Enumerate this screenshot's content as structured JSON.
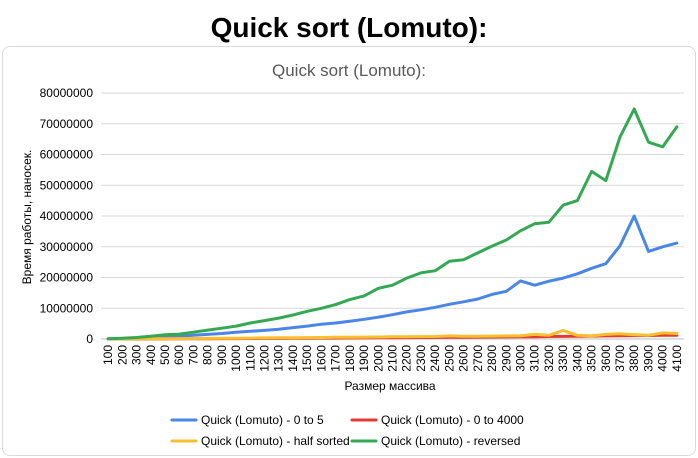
{
  "page": {
    "title": "Quick sort (Lomuto):"
  },
  "chart_data": {
    "type": "line",
    "title": "Quick sort (Lomuto):",
    "xlabel": "Размер массива",
    "ylabel": "Время работы, наносек.",
    "ylim": [
      0,
      80000000
    ],
    "yticks": [
      "0",
      "10000000",
      "20000000",
      "30000000",
      "40000000",
      "50000000",
      "60000000",
      "70000000",
      "80000000"
    ],
    "grid": true,
    "legend_position": "bottom",
    "categories": [
      100,
      200,
      300,
      400,
      500,
      600,
      700,
      800,
      900,
      1000,
      1100,
      1200,
      1300,
      1400,
      1500,
      1600,
      1700,
      1800,
      1900,
      2000,
      2100,
      2200,
      2300,
      2400,
      2500,
      2600,
      2700,
      2800,
      2900,
      3000,
      3100,
      3200,
      3300,
      3400,
      3500,
      3600,
      3700,
      3800,
      3900,
      4000,
      4100
    ],
    "series": [
      {
        "name": "Quick (Lomuto) - 0 to 5",
        "color": "#4a86e8",
        "values": [
          50000,
          100000,
          200000,
          400000,
          600000,
          900000,
          1200000,
          1500000,
          1800000,
          2200000,
          2500000,
          2800000,
          3200000,
          3700000,
          4200000,
          4800000,
          5200000,
          5800000,
          6400000,
          7100000,
          7900000,
          8800000,
          9500000,
          10300000,
          11300000,
          12100000,
          13000000,
          14500000,
          15500000,
          18900000,
          17500000,
          18800000,
          19800000,
          21200000,
          23000000,
          24500000,
          30300000,
          40000000,
          28500000,
          30000000,
          31200000
        ]
      },
      {
        "name": "Quick (Lomuto) - 0 to 4000",
        "color": "#e53935",
        "values": [
          0,
          0,
          10000,
          20000,
          40000,
          60000,
          80000,
          100000,
          120000,
          140000,
          160000,
          180000,
          200000,
          220000,
          250000,
          280000,
          300000,
          330000,
          360000,
          390000,
          420000,
          450000,
          480000,
          510000,
          550000,
          580000,
          610000,
          650000,
          690000,
          720000,
          760000,
          800000,
          850000,
          900000,
          950000,
          1000000,
          1050000,
          1100000,
          1150000,
          1200000,
          1250000
        ]
      },
      {
        "name": "Quick (Lomuto) - half sorted",
        "color": "#f9bf2c",
        "values": [
          20000,
          40000,
          60000,
          80000,
          100000,
          130000,
          160000,
          200000,
          230000,
          270000,
          300000,
          350000,
          380000,
          420000,
          460000,
          500000,
          540000,
          580000,
          620000,
          660000,
          700000,
          740000,
          780000,
          820000,
          1000000,
          870000,
          900000,
          950000,
          1000000,
          1050000,
          1500000,
          1200000,
          2800000,
          1200000,
          1000000,
          1500000,
          1700000,
          1400000,
          1200000,
          2000000,
          1800000
        ]
      },
      {
        "name": "Quick (Lomuto) - reversed",
        "color": "#34a853",
        "values": [
          100000,
          250000,
          500000,
          900000,
          1400000,
          1600000,
          2200000,
          2900000,
          3500000,
          4200000,
          5200000,
          6000000,
          6800000,
          7800000,
          9000000,
          10000000,
          11200000,
          12800000,
          14000000,
          16500000,
          17500000,
          19800000,
          21500000,
          22200000,
          25300000,
          25800000,
          28000000,
          30200000,
          32200000,
          35200000,
          37500000,
          38000000,
          43500000,
          45000000,
          54500000,
          51500000,
          65700000,
          74800000,
          64000000,
          62500000,
          69000000
        ]
      }
    ]
  }
}
